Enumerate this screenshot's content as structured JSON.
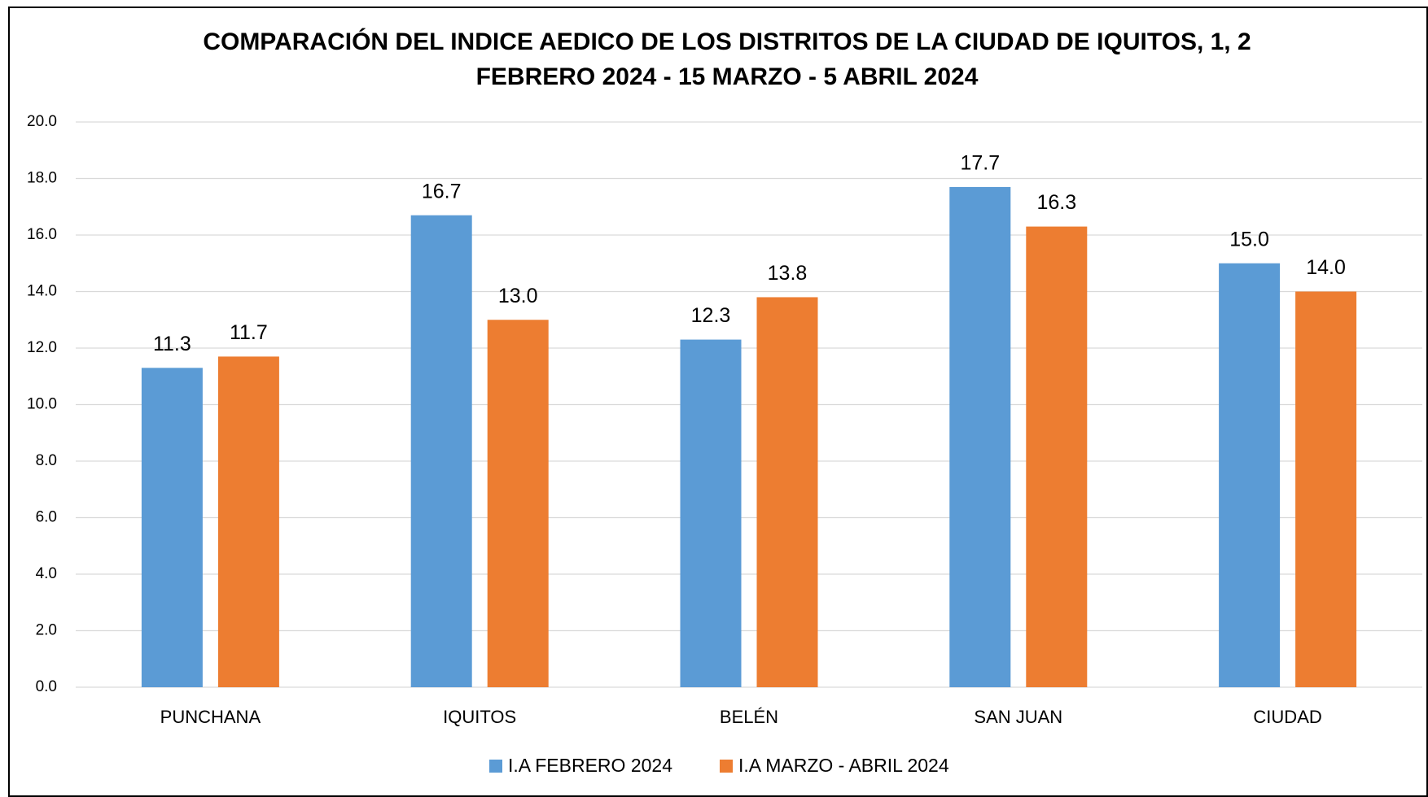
{
  "chart_data": {
    "type": "bar",
    "title": [
      "COMPARACIÓN DEL INDICE AEDICO DE LOS DISTRITOS DE LA CIUDAD DE IQUITOS, 1, 2",
      "FEBRERO 2024 - 15 MARZO - 5 ABRIL 2024"
    ],
    "categories": [
      "PUNCHANA",
      "IQUITOS",
      "BELÉN",
      "SAN JUAN",
      "CIUDAD"
    ],
    "series": [
      {
        "name": "I.A FEBRERO 2024",
        "color": "#5b9bd5",
        "values": [
          11.3,
          16.7,
          12.3,
          17.7,
          15.0
        ],
        "value_labels": [
          "11.3",
          "16.7",
          "12.3",
          "17.7",
          "15.0"
        ]
      },
      {
        "name": "I.A MARZO - ABRIL 2024",
        "color": "#ed7d31",
        "values": [
          11.7,
          13.0,
          13.8,
          16.3,
          14.0
        ],
        "value_labels": [
          "11.7",
          "13.0",
          "13.8",
          "16.3",
          "14.0"
        ]
      }
    ],
    "ylim": [
      0,
      20
    ],
    "yticks": [
      {
        "value": 0,
        "label": "0.0"
      },
      {
        "value": 2,
        "label": "2.0"
      },
      {
        "value": 4,
        "label": "4.0"
      },
      {
        "value": 6,
        "label": "6.0"
      },
      {
        "value": 8,
        "label": "8.0"
      },
      {
        "value": 10,
        "label": "10.0"
      },
      {
        "value": 12,
        "label": "12.0"
      },
      {
        "value": 14,
        "label": "14.0"
      },
      {
        "value": 16,
        "label": "16.0"
      },
      {
        "value": 18,
        "label": "18.0"
      },
      {
        "value": 20,
        "label": "20.0"
      }
    ],
    "grid": true,
    "legend": "bottom"
  }
}
